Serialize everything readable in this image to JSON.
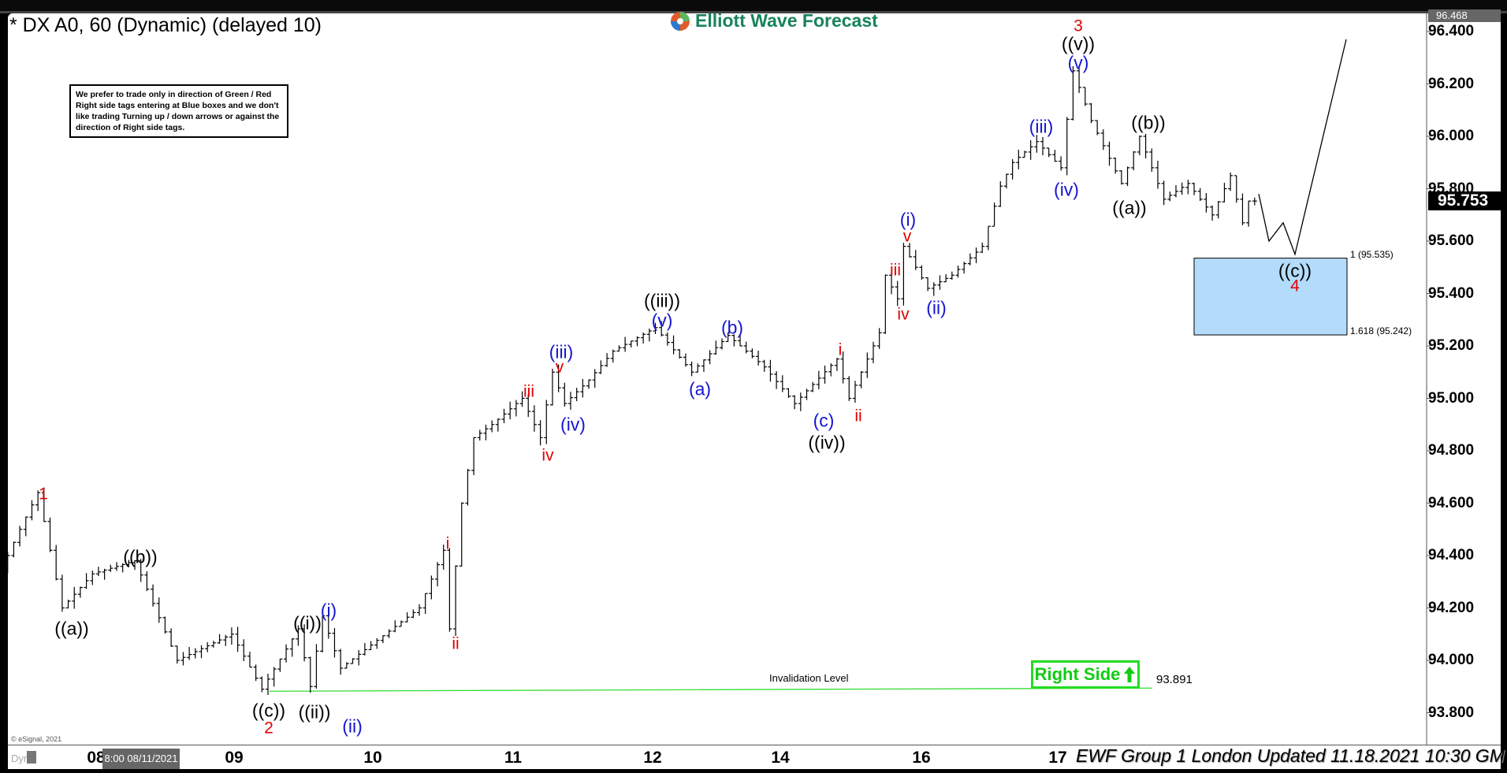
{
  "header": {
    "title": "* DX A0, 60 (Dynamic) (delayed 10)",
    "logo_text": "Elliott Wave Forecast"
  },
  "info_box": "We prefer to trade only in direction of Green / Red Right side tags entering at Blue boxes and we don't like trading Turning up / down arrows or against the direction of Right side tags.",
  "footer": {
    "updated": "EWF Group 1 London Updated 11.18.2021 10:30 GMT",
    "copyright": "© eSignal, 2021",
    "dyn": "Dyn",
    "cursor_tooltip": "8:00 08/11/2021"
  },
  "colors": {
    "red": "#e00000",
    "blue": "#1515d0",
    "green": "#22dd22",
    "box": "#b3dcfb"
  },
  "chart_data": {
    "type": "ohlc",
    "symbol": "DX A0",
    "interval": "60",
    "ylim": [
      93.75,
      96.47
    ],
    "y_ticks": [
      "96.400",
      "96.200",
      "96.000",
      "95.800",
      "95.600",
      "95.400",
      "95.200",
      "95.000",
      "94.800",
      "94.600",
      "94.400",
      "94.200",
      "94.000",
      "93.800"
    ],
    "x_tick_labels": [
      "08",
      "09",
      "10",
      "11",
      "12",
      "14",
      "16",
      "17"
    ],
    "high_marker": "96.468",
    "last_price": "95.753",
    "swing_points": [
      {
        "bar": 0,
        "price": 94.35
      },
      {
        "bar": 3,
        "price": 94.5
      },
      {
        "bar": 6,
        "price": 94.64
      },
      {
        "bar": 10,
        "price": 94.2
      },
      {
        "bar": 15,
        "price": 94.33
      },
      {
        "bar": 22,
        "price": 94.38
      },
      {
        "bar": 29,
        "price": 94.0
      },
      {
        "bar": 38,
        "price": 94.1
      },
      {
        "bar": 43,
        "price": 93.89
      },
      {
        "bar": 49,
        "price": 94.12
      },
      {
        "bar": 51,
        "price": 93.9
      },
      {
        "bar": 53,
        "price": 94.17
      },
      {
        "bar": 56,
        "price": 93.97
      },
      {
        "bar": 69,
        "price": 94.2
      },
      {
        "bar": 73,
        "price": 94.42
      },
      {
        "bar": 74,
        "price": 94.12
      },
      {
        "bar": 76,
        "price": 94.6
      },
      {
        "bar": 78,
        "price": 94.85
      },
      {
        "bar": 81,
        "price": 94.9
      },
      {
        "bar": 86,
        "price": 95.0
      },
      {
        "bar": 89,
        "price": 94.85
      },
      {
        "bar": 91,
        "price": 95.1
      },
      {
        "bar": 93,
        "price": 94.98
      },
      {
        "bar": 97,
        "price": 95.07
      },
      {
        "bar": 101,
        "price": 95.18
      },
      {
        "bar": 108,
        "price": 95.27
      },
      {
        "bar": 114,
        "price": 95.1
      },
      {
        "bar": 120,
        "price": 95.24
      },
      {
        "bar": 126,
        "price": 95.12
      },
      {
        "bar": 131,
        "price": 94.98
      },
      {
        "bar": 138,
        "price": 95.15
      },
      {
        "bar": 140,
        "price": 95.0
      },
      {
        "bar": 145,
        "price": 95.25
      },
      {
        "bar": 146,
        "price": 95.47
      },
      {
        "bar": 148,
        "price": 95.38
      },
      {
        "bar": 149,
        "price": 95.58
      },
      {
        "bar": 153,
        "price": 95.42
      },
      {
        "bar": 157,
        "price": 95.47
      },
      {
        "bar": 162,
        "price": 95.58
      },
      {
        "bar": 165,
        "price": 95.81
      },
      {
        "bar": 167,
        "price": 95.9
      },
      {
        "bar": 171,
        "price": 95.98
      },
      {
        "bar": 175,
        "price": 95.88
      },
      {
        "bar": 177,
        "price": 96.25
      },
      {
        "bar": 180,
        "price": 96.06
      },
      {
        "bar": 185,
        "price": 95.82
      },
      {
        "bar": 188,
        "price": 96.0
      },
      {
        "bar": 192,
        "price": 95.76
      },
      {
        "bar": 196,
        "price": 95.82
      },
      {
        "bar": 200,
        "price": 95.7
      },
      {
        "bar": 203,
        "price": 95.85
      },
      {
        "bar": 205,
        "price": 95.67
      },
      {
        "bar": 206,
        "price": 95.753
      }
    ],
    "projection": [
      95.78,
      95.6,
      95.67,
      95.55,
      96.37
    ],
    "blue_box": {
      "top": 95.535,
      "bottom": 95.242,
      "top_label": "1 (95.535)",
      "bottom_label": "1.618 (95.242)"
    },
    "invalidation": {
      "price": 93.891,
      "label": "Invalidation Level",
      "value_label": "93.891"
    },
    "right_side_tag": "Right Side",
    "wave_labels": [
      {
        "text": "1",
        "color": "red"
      },
      {
        "text": "2",
        "color": "red"
      },
      {
        "text": "3",
        "color": "red"
      },
      {
        "text": "4",
        "color": "red"
      },
      {
        "text": "i",
        "color": "red"
      },
      {
        "text": "ii",
        "color": "red"
      },
      {
        "text": "iii",
        "color": "red"
      },
      {
        "text": "iv",
        "color": "red"
      },
      {
        "text": "v",
        "color": "red"
      },
      {
        "text": "i",
        "color": "red"
      },
      {
        "text": "ii",
        "color": "red"
      },
      {
        "text": "iii",
        "color": "red"
      },
      {
        "text": "iv",
        "color": "red"
      },
      {
        "text": "v",
        "color": "red"
      },
      {
        "text": "((a))",
        "color": "black"
      },
      {
        "text": "((b))",
        "color": "black"
      },
      {
        "text": "((c))",
        "color": "black"
      },
      {
        "text": "((i))",
        "color": "black"
      },
      {
        "text": "((ii))",
        "color": "black"
      },
      {
        "text": "((iii))",
        "color": "black"
      },
      {
        "text": "((iv))",
        "color": "black"
      },
      {
        "text": "((v))",
        "color": "black"
      },
      {
        "text": "((a))",
        "color": "black"
      },
      {
        "text": "((b))",
        "color": "black"
      },
      {
        "text": "((c))",
        "color": "black"
      },
      {
        "text": "(i)",
        "color": "blue"
      },
      {
        "text": "(ii)",
        "color": "blue"
      },
      {
        "text": "(iii)",
        "color": "blue"
      },
      {
        "text": "(iv)",
        "color": "blue"
      },
      {
        "text": "(v)",
        "color": "blue"
      },
      {
        "text": "(a)",
        "color": "blue"
      },
      {
        "text": "(b)",
        "color": "blue"
      },
      {
        "text": "(c)",
        "color": "blue"
      },
      {
        "text": "(i)",
        "color": "blue"
      },
      {
        "text": "(ii)",
        "color": "blue"
      },
      {
        "text": "(iii)",
        "color": "blue"
      },
      {
        "text": "(iv)",
        "color": "blue"
      },
      {
        "text": "(v)",
        "color": "blue"
      }
    ]
  }
}
